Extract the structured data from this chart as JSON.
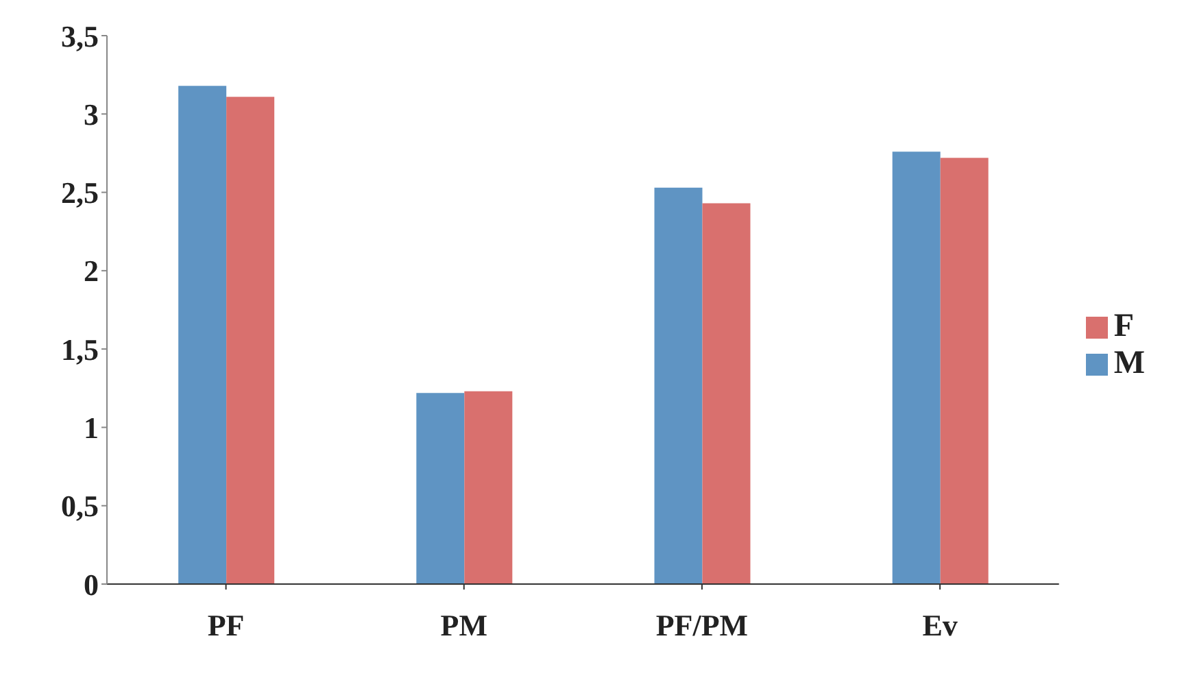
{
  "chart_data": {
    "type": "bar",
    "categories": [
      "PF",
      "PM",
      "PF/PM",
      "Ev"
    ],
    "series": [
      {
        "name": "M",
        "color": "#5f94c3",
        "values": [
          3.18,
          1.22,
          2.53,
          2.76
        ]
      },
      {
        "name": "F",
        "color": "#d9706e",
        "values": [
          3.11,
          1.23,
          2.43,
          2.72
        ]
      }
    ],
    "ylim": [
      0,
      3.5
    ],
    "yticks": [
      0,
      {
        "value": 0.5,
        "label": "0,5"
      },
      1,
      {
        "value": 1.5,
        "label": "1,5"
      },
      2,
      {
        "value": 2.5,
        "label": "2,5"
      },
      3,
      {
        "value": 3.5,
        "label": "3,5"
      }
    ],
    "grid": false,
    "legend": "right"
  }
}
